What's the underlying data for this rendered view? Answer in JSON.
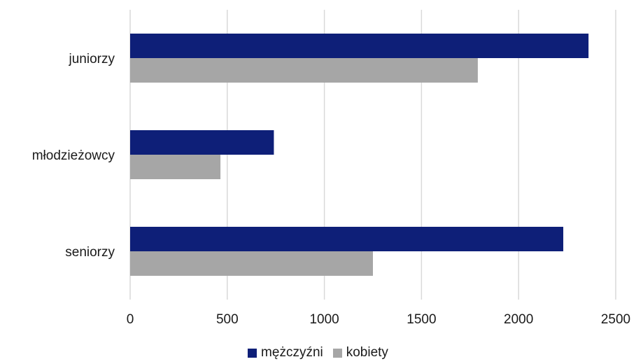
{
  "chart_data": {
    "type": "bar",
    "orientation": "horizontal",
    "categories": [
      "juniorzy",
      "młodzieżowcy",
      "seniorzy"
    ],
    "series": [
      {
        "name": "mężczyźni",
        "color": "#0e1f78",
        "values": [
          2360,
          740,
          2230
        ]
      },
      {
        "name": "kobiety",
        "color": "#a6a6a6",
        "values": [
          1790,
          465,
          1250
        ]
      }
    ],
    "xlim": [
      0,
      2500
    ],
    "xticks": [
      "0",
      "500",
      "1000",
      "1500",
      "2000",
      "2500"
    ],
    "grid": true,
    "legend_position": "bottom-center"
  }
}
